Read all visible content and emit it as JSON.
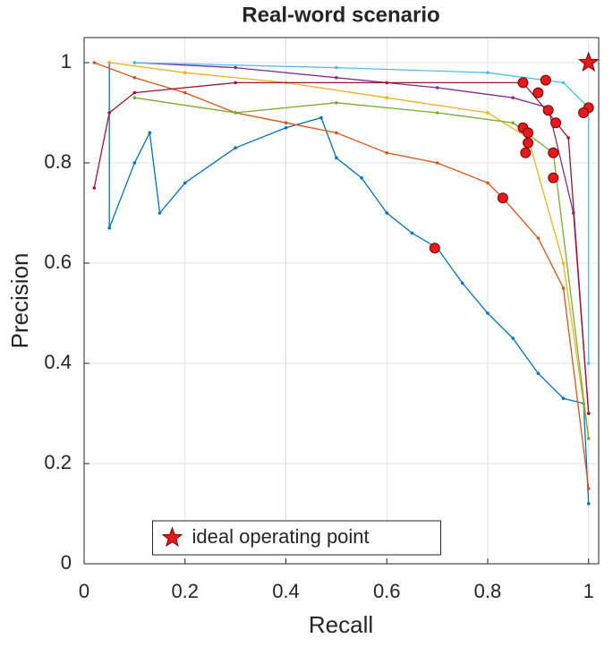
{
  "chart_data": {
    "type": "line",
    "title": "Real-word scenario",
    "xlabel": "Recall",
    "ylabel": "Precision",
    "xlim": [
      0,
      1.02
    ],
    "ylim": [
      0,
      1.05
    ],
    "xticks": [
      0,
      0.2,
      0.4,
      0.6,
      0.8,
      1
    ],
    "yticks": [
      0,
      0.2,
      0.4,
      0.6,
      0.8,
      1
    ],
    "grid": true,
    "series": [
      {
        "color": "#0072BD",
        "x": [
          0.05,
          0.05,
          0.1,
          0.13,
          0.15,
          0.2,
          0.3,
          0.4,
          0.47,
          0.5,
          0.55,
          0.6,
          0.65,
          0.7,
          0.75,
          0.8,
          0.85,
          0.9,
          0.95,
          0.99,
          1.0
        ],
        "y": [
          1,
          0.67,
          0.8,
          0.86,
          0.7,
          0.76,
          0.83,
          0.87,
          0.89,
          0.81,
          0.77,
          0.7,
          0.66,
          0.63,
          0.56,
          0.5,
          0.45,
          0.38,
          0.33,
          0.32,
          0.12
        ]
      },
      {
        "color": "#D95319",
        "x": [
          0.02,
          0.1,
          0.2,
          0.3,
          0.4,
          0.5,
          0.6,
          0.7,
          0.8,
          0.83,
          0.9,
          0.95,
          1.0
        ],
        "y": [
          1,
          0.97,
          0.94,
          0.9,
          0.88,
          0.86,
          0.82,
          0.8,
          0.76,
          0.73,
          0.65,
          0.55,
          0.15
        ]
      },
      {
        "color": "#EDB120",
        "x": [
          0.05,
          0.2,
          0.4,
          0.6,
          0.8,
          0.88,
          0.95,
          1.0
        ],
        "y": [
          1,
          0.98,
          0.96,
          0.93,
          0.9,
          0.85,
          0.6,
          0.25
        ]
      },
      {
        "color": "#7E2F8E",
        "x": [
          0.1,
          0.3,
          0.5,
          0.7,
          0.85,
          0.92,
          0.97,
          1.0
        ],
        "y": [
          1,
          0.99,
          0.97,
          0.95,
          0.93,
          0.91,
          0.7,
          0.3
        ]
      },
      {
        "color": "#77AC30",
        "x": [
          0.1,
          0.3,
          0.5,
          0.7,
          0.85,
          0.93,
          1.0
        ],
        "y": [
          0.93,
          0.9,
          0.92,
          0.9,
          0.88,
          0.82,
          0.25
        ]
      },
      {
        "color": "#4DBEEE",
        "x": [
          0.1,
          0.5,
          0.8,
          0.95,
          1.0,
          1.0
        ],
        "y": [
          1,
          0.99,
          0.98,
          0.96,
          0.91,
          0.4
        ]
      },
      {
        "color": "#A2142F",
        "x": [
          0.02,
          0.05,
          0.1,
          0.3,
          0.6,
          0.87,
          0.92,
          0.96,
          1.0
        ],
        "y": [
          0.75,
          0.9,
          0.94,
          0.96,
          0.96,
          0.96,
          0.9,
          0.85,
          0.3
        ]
      }
    ],
    "operating_points": {
      "color": "#e41a1c",
      "x": [
        0.695,
        0.83,
        0.88,
        0.92,
        0.93,
        1.0,
        0.87,
        0.9,
        0.915,
        0.87,
        0.935,
        0.93,
        0.99,
        0.875,
        0.88
      ],
      "y": [
        0.63,
        0.73,
        0.84,
        0.905,
        0.82,
        0.91,
        0.96,
        0.94,
        0.965,
        0.87,
        0.88,
        0.77,
        0.9,
        0.82,
        0.86
      ]
    },
    "ideal_point": {
      "name": "ideal operating point",
      "color": "#e41a1c",
      "x": 1,
      "y": 1
    },
    "legend": "bottom"
  }
}
